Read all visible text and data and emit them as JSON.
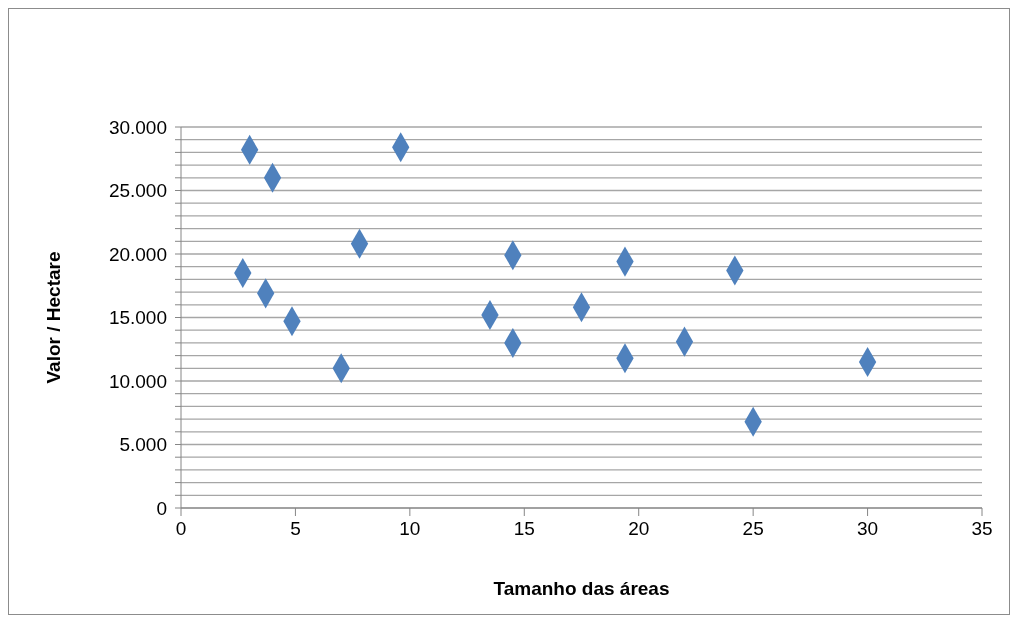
{
  "chart_data": {
    "type": "scatter",
    "xlabel": "Tamanho das áreas",
    "ylabel": "Valor / Hectare",
    "x": [
      3.0,
      4.0,
      9.6,
      7.8,
      2.7,
      3.7,
      4.85,
      7.0,
      14.5,
      13.5,
      14.5,
      17.5,
      19.4,
      19.4,
      22.0,
      24.2,
      25.0,
      30.0
    ],
    "series": [
      {
        "color": "#4f81bd",
        "values": [
          28200,
          26000,
          28400,
          20800,
          18500,
          16900,
          14700,
          11000,
          19900,
          15200,
          13000,
          15800,
          19400,
          11800,
          13100,
          18700,
          6800,
          11500
        ]
      }
    ],
    "xlim": [
      0,
      35
    ],
    "xticks": [
      0,
      5,
      10,
      15,
      20,
      25,
      30,
      35
    ],
    "ylim": [
      0,
      30000
    ],
    "yticks": [
      {
        "value": 0,
        "label": "0"
      },
      {
        "value": 1000,
        "label": null
      },
      {
        "value": 2000,
        "label": null
      },
      {
        "value": 3000,
        "label": null
      },
      {
        "value": 4000,
        "label": null
      },
      {
        "value": 5000,
        "label": "5.000"
      },
      {
        "value": 6000,
        "label": null
      },
      {
        "value": 7000,
        "label": null
      },
      {
        "value": 8000,
        "label": null
      },
      {
        "value": 9000,
        "label": null
      },
      {
        "value": 10000,
        "label": "10.000"
      },
      {
        "value": 11000,
        "label": null
      },
      {
        "value": 12000,
        "label": null
      },
      {
        "value": 13000,
        "label": null
      },
      {
        "value": 14000,
        "label": null
      },
      {
        "value": 15000,
        "label": "15.000"
      },
      {
        "value": 16000,
        "label": null
      },
      {
        "value": 17000,
        "label": null
      },
      {
        "value": 18000,
        "label": null
      },
      {
        "value": 19000,
        "label": null
      },
      {
        "value": 20000,
        "label": "20.000"
      },
      {
        "value": 21000,
        "label": null
      },
      {
        "value": 22000,
        "label": null
      },
      {
        "value": 23000,
        "label": null
      },
      {
        "value": 24000,
        "label": null
      },
      {
        "value": 25000,
        "label": "25.000"
      },
      {
        "value": 26000,
        "label": null
      },
      {
        "value": 27000,
        "label": null
      },
      {
        "value": 28000,
        "label": null
      },
      {
        "value": 29000,
        "label": null
      },
      {
        "value": 30000,
        "label": "30.000"
      }
    ],
    "grid": "y",
    "legend": false,
    "marker": "diamond"
  }
}
